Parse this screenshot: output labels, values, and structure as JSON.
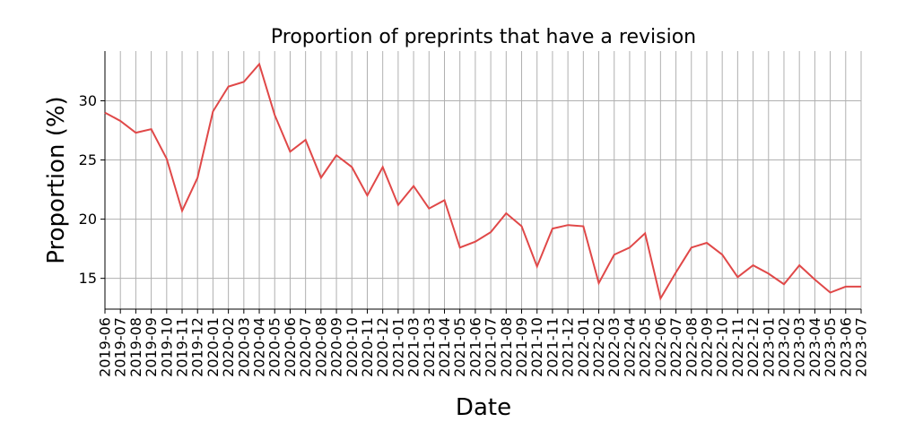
{
  "chart_data": {
    "type": "line",
    "title": "Proportion of preprints that have a revision",
    "xlabel": "Date",
    "ylabel": "Proportion (%)",
    "ylim": [
      12.4,
      34.2
    ],
    "yticks": [
      15,
      20,
      25,
      30
    ],
    "grid": true,
    "legend": "none",
    "line_color": "#e04848",
    "x": [
      "2019-06",
      "2019-07",
      "2019-08",
      "2019-09",
      "2019-10",
      "2019-11",
      "2019-12",
      "2020-01",
      "2020-02",
      "2020-03",
      "2020-04",
      "2020-05",
      "2020-06",
      "2020-07",
      "2020-08",
      "2020-09",
      "2020-10",
      "2020-11",
      "2020-12",
      "2021-01",
      "2021-03",
      "2021-03",
      "2021-04",
      "2021-05",
      "2021-06",
      "2021-07",
      "2021-08",
      "2021-09",
      "2021-10",
      "2021-11",
      "2021-12",
      "2022-01",
      "2022-02",
      "2022-03",
      "2022-04",
      "2022-05",
      "2022-06",
      "2022-07",
      "2022-08",
      "2022-09",
      "2022-10",
      "2022-11",
      "2022-12",
      "2023-01",
      "2023-02",
      "2023-03",
      "2023-04",
      "2023-05",
      "2023-06",
      "2023-07"
    ],
    "series": [
      {
        "values": [
          29.0,
          28.3,
          27.3,
          27.6,
          25.1,
          20.7,
          23.5,
          29.1,
          31.2,
          31.6,
          33.1,
          28.8,
          25.7,
          26.7,
          23.5,
          25.4,
          24.4,
          22.0,
          24.4,
          21.2,
          22.8,
          20.9,
          21.6,
          17.6,
          18.1,
          18.9,
          20.5,
          19.4,
          16.0,
          19.2,
          19.5,
          19.4,
          14.6,
          17.0,
          17.6,
          18.8,
          13.3,
          15.5,
          17.6,
          18.0,
          17.0,
          15.1,
          16.1,
          15.4,
          14.5,
          16.1,
          14.9,
          13.8,
          14.3,
          14.3
        ]
      }
    ]
  }
}
